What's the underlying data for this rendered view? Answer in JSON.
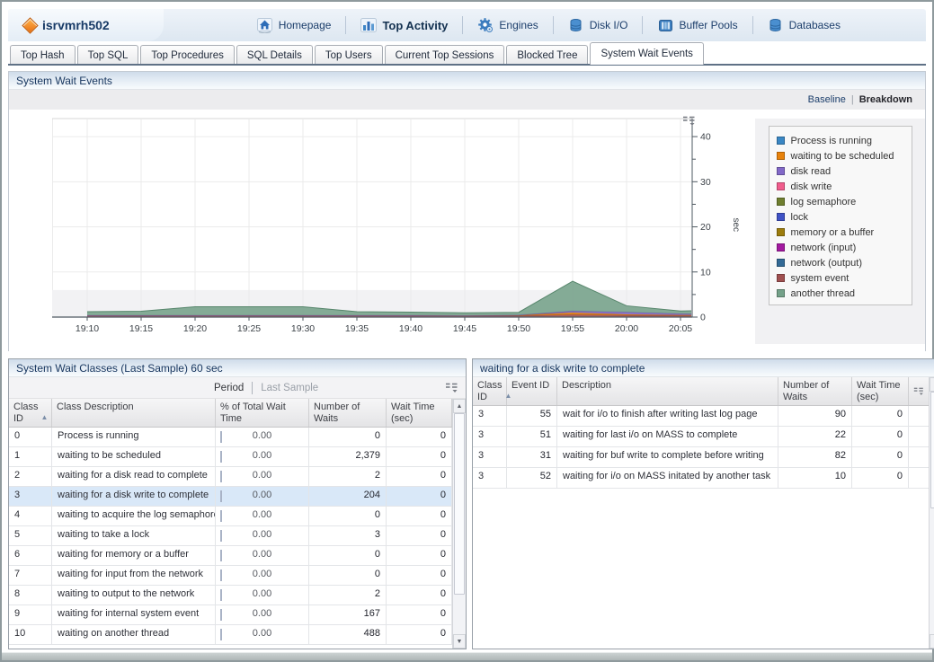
{
  "window": {
    "server_name": "isrvmrh502"
  },
  "nav": {
    "items": [
      {
        "label": "Homepage",
        "icon": "home-icon",
        "active": false
      },
      {
        "label": "Top Activity",
        "icon": "bar-chart-icon",
        "active": true
      },
      {
        "label": "Engines",
        "icon": "gear-icon",
        "active": false
      },
      {
        "label": "Disk I/O",
        "icon": "disk-icon",
        "active": false
      },
      {
        "label": "Buffer Pools",
        "icon": "buffer-pool-icon",
        "active": false
      },
      {
        "label": "Databases",
        "icon": "database-icon",
        "active": false
      }
    ]
  },
  "tabs": {
    "items": [
      "Top Hash",
      "Top SQL",
      "Top Procedures",
      "SQL Details",
      "Top Users",
      "Current Top Sessions",
      "Blocked Tree",
      "System Wait Events"
    ],
    "active": "System Wait Events"
  },
  "wait_events_panel": {
    "title": "System Wait Events",
    "baseline_link": "Baseline",
    "breakdown_link": "Breakdown",
    "active_view": "Breakdown"
  },
  "chart_data": {
    "type": "area",
    "stacked": true,
    "title": "System Wait Events",
    "ylabel": "sec",
    "ylim": [
      0,
      44
    ],
    "yticks": [
      0,
      10,
      20,
      30,
      40
    ],
    "yticks_minor": [
      5,
      15,
      25,
      35
    ],
    "grid": true,
    "legend_position": "right",
    "baseline_band": [
      0,
      6
    ],
    "x_tick_labels": [
      "19:10",
      "19:15",
      "19:20",
      "19:25",
      "19:30",
      "19:35",
      "19:40",
      "19:45",
      "19:50",
      "19:55",
      "20:00",
      "20:05"
    ],
    "x_minutes": [
      0,
      5,
      10,
      15,
      20,
      25,
      30,
      35,
      40,
      45,
      50,
      55,
      56
    ],
    "series": [
      {
        "name": "system event",
        "color": "#A05050",
        "stroke": "#8a4343",
        "values": [
          0.35,
          0.35,
          0.35,
          0.35,
          0.35,
          0.35,
          0.35,
          0.3,
          0.3,
          0.55,
          0.4,
          0.35,
          0.35
        ]
      },
      {
        "name": "waiting to be scheduled",
        "color": "#E8820B",
        "stroke": "#c46e09",
        "values": [
          0.05,
          0.05,
          0.05,
          0.05,
          0.05,
          0.05,
          0.05,
          0.05,
          0.1,
          0.45,
          0.2,
          0.1,
          0.1
        ]
      },
      {
        "name": "disk read",
        "color": "#8268C8",
        "stroke": "#6b54ab",
        "values": [
          0,
          0,
          0,
          0,
          0,
          0,
          0,
          0,
          0.05,
          0.35,
          0.5,
          0.3,
          0.25
        ]
      },
      {
        "name": "another thread",
        "color": "#74A189",
        "stroke": "#57866c",
        "values": [
          0.8,
          0.9,
          1.9,
          1.9,
          1.9,
          0.8,
          0.7,
          0.6,
          0.6,
          6.6,
          1.4,
          0.6,
          0.7
        ]
      }
    ],
    "legend": [
      {
        "label": "Process is running",
        "color": "#3A87C4"
      },
      {
        "label": "waiting to be scheduled",
        "color": "#E8820B"
      },
      {
        "label": "disk read",
        "color": "#8268C8"
      },
      {
        "label": "disk write",
        "color": "#F05C8C"
      },
      {
        "label": "log semaphore",
        "color": "#6F7F2F"
      },
      {
        "label": "lock",
        "color": "#4053C6"
      },
      {
        "label": "memory or a buffer",
        "color": "#9C7C0C"
      },
      {
        "label": "network (input)",
        "color": "#A31AA0"
      },
      {
        "label": "network (output)",
        "color": "#336A96"
      },
      {
        "label": "system event",
        "color": "#A05050"
      },
      {
        "label": "another thread",
        "color": "#74A189"
      }
    ]
  },
  "wait_classes_panel": {
    "title": "System Wait Classes (Last Sample) 60 sec",
    "toolbar": {
      "period_label": "Period",
      "period_value": "Last Sample"
    },
    "columns": [
      "Class ID",
      "Class Description",
      "% of Total Wait Time",
      "Number of Waits",
      "Wait Time (sec)"
    ],
    "sorted_column": "Class ID",
    "selected_class_id": "3",
    "rows": [
      {
        "class_id": "0",
        "description": "Process is running",
        "pct": "0.00",
        "waits": "0",
        "wait_time": "0"
      },
      {
        "class_id": "1",
        "description": "waiting to be scheduled",
        "pct": "0.00",
        "waits": "2,379",
        "wait_time": "0"
      },
      {
        "class_id": "2",
        "description": "waiting for a disk read to complete",
        "pct": "0.00",
        "waits": "2",
        "wait_time": "0"
      },
      {
        "class_id": "3",
        "description": "waiting for a disk write to complete",
        "pct": "0.00",
        "waits": "204",
        "wait_time": "0"
      },
      {
        "class_id": "4",
        "description": "waiting to acquire the log semaphore",
        "pct": "0.00",
        "waits": "0",
        "wait_time": "0"
      },
      {
        "class_id": "5",
        "description": "waiting to take a lock",
        "pct": "0.00",
        "waits": "3",
        "wait_time": "0"
      },
      {
        "class_id": "6",
        "description": "waiting for memory or a buffer",
        "pct": "0.00",
        "waits": "0",
        "wait_time": "0"
      },
      {
        "class_id": "7",
        "description": "waiting for input from the network",
        "pct": "0.00",
        "waits": "0",
        "wait_time": "0"
      },
      {
        "class_id": "8",
        "description": "waiting to output to the network",
        "pct": "0.00",
        "waits": "2",
        "wait_time": "0"
      },
      {
        "class_id": "9",
        "description": "waiting for internal system event",
        "pct": "0.00",
        "waits": "167",
        "wait_time": "0"
      },
      {
        "class_id": "10",
        "description": "waiting on another thread",
        "pct": "0.00",
        "waits": "488",
        "wait_time": "0"
      }
    ]
  },
  "wait_detail_panel": {
    "title": "waiting for a disk write to complete",
    "columns": [
      "Class ID",
      "Event ID",
      "Description",
      "Number of Waits",
      "Wait Time (sec)"
    ],
    "sorted_column": "Class ID",
    "rows": [
      {
        "class_id": "3",
        "event_id": "55",
        "description": "wait for i/o to finish after writing last log page",
        "waits": "90",
        "wait_time": "0"
      },
      {
        "class_id": "3",
        "event_id": "51",
        "description": "waiting for last i/o on MASS to complete",
        "waits": "22",
        "wait_time": "0"
      },
      {
        "class_id": "3",
        "event_id": "31",
        "description": "waiting for buf write to complete before writing",
        "waits": "82",
        "wait_time": "0"
      },
      {
        "class_id": "3",
        "event_id": "52",
        "description": "waiting for i/o on MASS initated by another task",
        "waits": "10",
        "wait_time": "0"
      }
    ]
  }
}
